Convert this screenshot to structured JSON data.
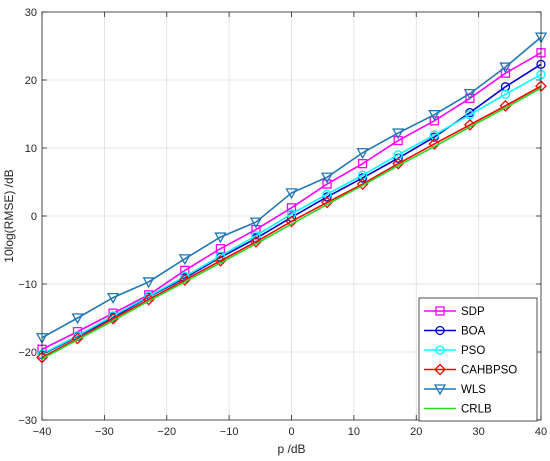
{
  "chart_data": {
    "type": "line",
    "xlabel": "p /dB",
    "ylabel": "10log(RMSE) /dB",
    "xlim": [
      -40,
      40
    ],
    "ylim": [
      -30,
      30
    ],
    "xticks": [
      -40,
      -30,
      -20,
      -10,
      0,
      10,
      20,
      30,
      40
    ],
    "yticks": [
      -30,
      -20,
      -10,
      0,
      10,
      20,
      30
    ],
    "xtick_labels": [
      "−40",
      "−30",
      "−20",
      "−10",
      "0",
      "10",
      "20",
      "30",
      "40"
    ],
    "ytick_labels": [
      "−30",
      "−20",
      "−10",
      "0",
      "10",
      "20",
      "30"
    ],
    "grid": true,
    "legend_position": "bottom-right",
    "x": [
      -40,
      -34.3,
      -28.6,
      -22.9,
      -17.1,
      -11.4,
      -5.7,
      0,
      5.7,
      11.4,
      17.1,
      22.9,
      28.6,
      34.3,
      40
    ],
    "series": [
      {
        "name": "SDP",
        "color": "#ff00ff",
        "marker": "square",
        "values": [
          -19.6,
          -17.0,
          -14.3,
          -11.6,
          -8.0,
          -4.8,
          -2.0,
          1.2,
          4.7,
          7.7,
          11.1,
          14.0,
          17.3,
          21.0,
          24.0
        ]
      },
      {
        "name": "BOA",
        "color": "#0000cc",
        "marker": "circle",
        "values": [
          -20.4,
          -17.7,
          -14.9,
          -11.9,
          -9.1,
          -6.1,
          -3.3,
          -0.2,
          2.8,
          5.6,
          8.5,
          11.6,
          15.2,
          19.0,
          22.3
        ]
      },
      {
        "name": "PSO",
        "color": "#00ffff",
        "marker": "circle",
        "values": [
          -20.3,
          -17.6,
          -14.7,
          -11.8,
          -8.9,
          -5.9,
          -2.9,
          0.3,
          3.2,
          6.0,
          9.0,
          11.9,
          14.9,
          17.9,
          20.8
        ]
      },
      {
        "name": "CAHBPSO",
        "color": "#ff0000",
        "marker": "diamond",
        "values": [
          -20.8,
          -18.0,
          -15.1,
          -12.3,
          -9.4,
          -6.6,
          -3.8,
          -0.8,
          2.0,
          4.7,
          7.7,
          10.6,
          13.4,
          16.2,
          19.1
        ]
      },
      {
        "name": "WLS",
        "color": "#1f77b4",
        "marker": "triangle-down",
        "values": [
          -17.9,
          -15.0,
          -12.0,
          -9.7,
          -6.3,
          -3.1,
          -0.9,
          3.4,
          5.7,
          9.3,
          12.2,
          14.9,
          18.0,
          21.9,
          26.3
        ]
      },
      {
        "name": "CRLB",
        "color": "#22dd22",
        "marker": "none",
        "values": [
          -21.0,
          -18.2,
          -15.4,
          -12.5,
          -9.7,
          -6.9,
          -4.1,
          -1.2,
          1.7,
          4.5,
          7.4,
          10.2,
          13.1,
          15.9,
          18.8
        ]
      }
    ]
  }
}
